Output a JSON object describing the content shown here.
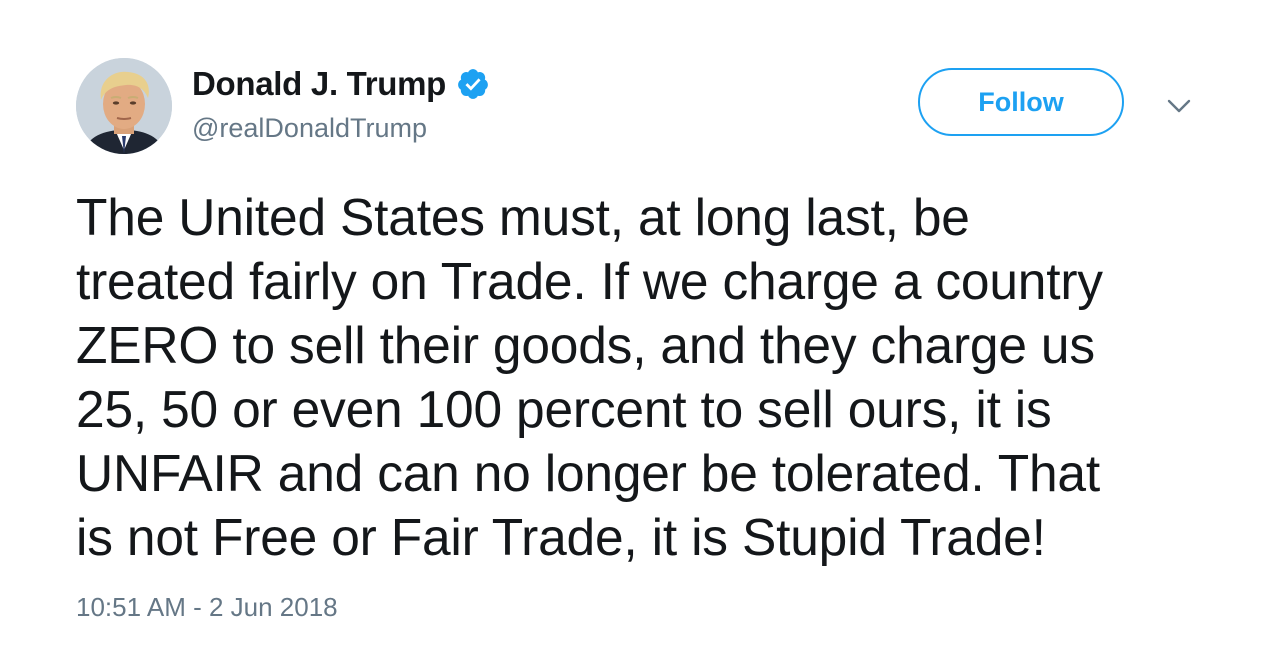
{
  "tweet": {
    "author": {
      "display_name": "Donald J. Trump",
      "handle": "@realDonaldTrump",
      "verified": true,
      "avatar_icon": "avatar-portrait"
    },
    "follow_label": "Follow",
    "menu_icon": "chevron-down-icon",
    "text_lines": [
      "The United States must, at long last, be",
      "treated fairly on Trade. If we charge a country",
      "ZERO to sell their goods, and they charge us",
      "25, 50 or even 100 percent to sell ours, it is",
      "UNFAIR and can no longer be tolerated. That",
      "is not Free or Fair Trade, it is Stupid Trade!"
    ],
    "timestamp": "10:51 AM - 2 Jun 2018"
  },
  "colors": {
    "accent": "#1da1f2",
    "text": "#14171a",
    "secondary_text": "#657786"
  }
}
